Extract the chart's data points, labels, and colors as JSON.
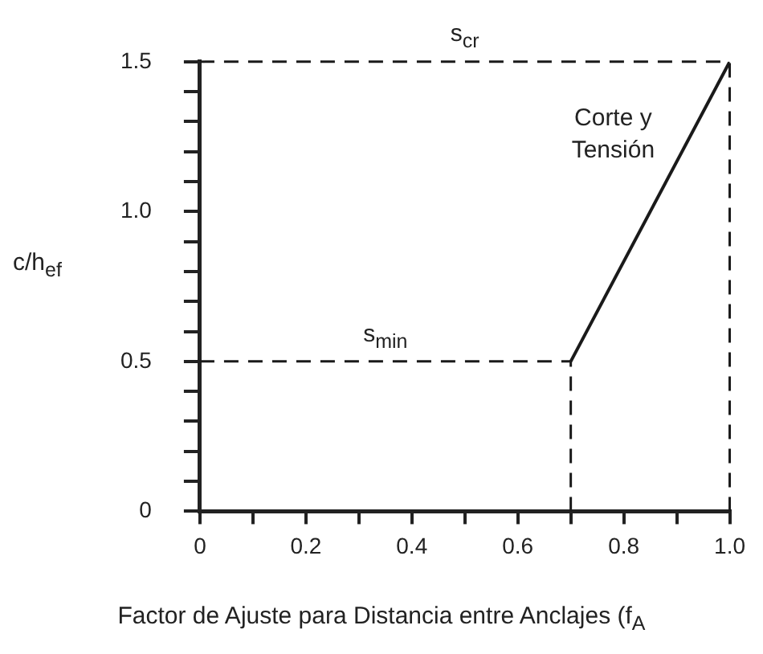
{
  "chart_data": {
    "type": "line",
    "xlabel": "Factor de Ajuste para Distancia entre Anclajes (f$_{A}$",
    "ylabel": "c/h$_{ef}$",
    "xlim": [
      0,
      1
    ],
    "ylim": [
      0,
      1.5
    ],
    "xticks": [
      0,
      {
        "value": 0.1,
        "label": null
      },
      0.2,
      {
        "value": 0.3,
        "label": null
      },
      0.4,
      {
        "value": 0.5,
        "label": null
      },
      0.6,
      {
        "value": 0.7,
        "label": null
      },
      0.8,
      {
        "value": 0.9,
        "label": null
      },
      {
        "value": 1,
        "label": "1.0"
      }
    ],
    "yticks": [
      0,
      {
        "value": 0.1,
        "label": null
      },
      {
        "value": 0.2,
        "label": null
      },
      {
        "value": 0.3,
        "label": null
      },
      {
        "value": 0.4,
        "label": null
      },
      0.5,
      {
        "value": 0.6,
        "label": null
      },
      {
        "value": 0.7,
        "label": null
      },
      {
        "value": 0.8,
        "label": null
      },
      {
        "value": 0.9,
        "label": null
      },
      {
        "value": 1,
        "label": "1.0"
      },
      {
        "value": 1.1,
        "label": null
      },
      {
        "value": 1.2,
        "label": null
      },
      {
        "value": 1.3,
        "label": null
      },
      {
        "value": 1.4,
        "label": null
      },
      1.5
    ],
    "grid": false,
    "marker": "none",
    "series": [
      {
        "color": "#1a1a1a",
        "line_style": "solid",
        "x": [
          0.7,
          1.0
        ],
        "values": [
          0.5,
          1.5
        ]
      }
    ],
    "ref_lines": [
      {
        "axis": "y",
        "value": 1.5,
        "label": "s$_{cr}$",
        "color": "#1a1a1a",
        "line_style": "dashed"
      },
      {
        "axis": "y",
        "value": 0.5,
        "label": "s$_{min}$",
        "color": "#1a1a1a",
        "line_style": "dashed"
      },
      {
        "axis": "x",
        "value": 0.7,
        "color": "#1a1a1a",
        "line_style": "dashed"
      },
      {
        "axis": "x",
        "value": 1,
        "color": "#1a1a1a",
        "line_style": "dashed"
      }
    ],
    "annotations": [
      "Corte y Tensión"
    ]
  }
}
